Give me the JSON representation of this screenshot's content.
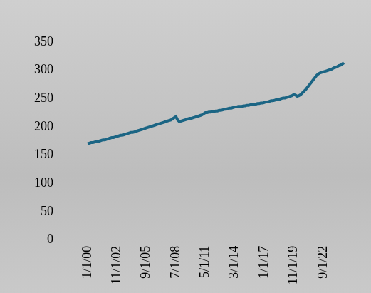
{
  "chart_data": {
    "type": "line",
    "categories": [
      "1/1/00",
      null,
      null,
      null,
      null,
      null,
      null,
      null,
      null,
      null,
      null,
      null,
      null,
      null,
      null,
      null,
      null,
      "11/1/02",
      null,
      null,
      null,
      null,
      null,
      null,
      null,
      null,
      null,
      null,
      null,
      null,
      null,
      null,
      null,
      null,
      "9/1/05",
      null,
      null,
      null,
      null,
      null,
      null,
      null,
      null,
      null,
      null,
      null,
      null,
      null,
      null,
      null,
      null,
      "7/1/08",
      null,
      null,
      null,
      null,
      null,
      null,
      null,
      null,
      null,
      null,
      null,
      null,
      null,
      null,
      null,
      null,
      "5/1/11",
      null,
      null,
      null,
      null,
      null,
      null,
      null,
      null,
      null,
      null,
      null,
      null,
      null,
      null,
      null,
      null,
      "3/1/14",
      null,
      null,
      null,
      null,
      null,
      null,
      null,
      null,
      null,
      null,
      null,
      null,
      null,
      null,
      null,
      null,
      "1/1/17",
      null,
      null,
      null,
      null,
      null,
      null,
      null,
      null,
      null,
      null,
      null,
      null,
      null,
      null,
      null,
      null,
      "11/1/19",
      null,
      null,
      null,
      null,
      null,
      null,
      null,
      null,
      null,
      null,
      null,
      null,
      null,
      null,
      null,
      null,
      "9/1/22",
      null,
      null,
      null,
      null,
      null,
      null,
      null,
      null,
      null,
      null,
      null,
      null
    ],
    "values": [
      170,
      171,
      172,
      172,
      173,
      174,
      174,
      175,
      176,
      177,
      177,
      178,
      179,
      180,
      181,
      181,
      182,
      183,
      184,
      185,
      185,
      186,
      187,
      188,
      189,
      190,
      190,
      191,
      192,
      193,
      194,
      195,
      196,
      197,
      198,
      199,
      200,
      201,
      202,
      203,
      204,
      205,
      206,
      207,
      208,
      209,
      210,
      211,
      212,
      214,
      216,
      218,
      212,
      209,
      210,
      211,
      212,
      213,
      214,
      215,
      215,
      216,
      217,
      218,
      219,
      220,
      221,
      223,
      225,
      225,
      226,
      226,
      227,
      227,
      228,
      228,
      229,
      229,
      230,
      231,
      231,
      232,
      233,
      233,
      234,
      235,
      235,
      236,
      236,
      236,
      237,
      237,
      238,
      238,
      239,
      239,
      240,
      240,
      241,
      241,
      242,
      242,
      243,
      244,
      244,
      245,
      246,
      246,
      247,
      248,
      248,
      249,
      250,
      251,
      251,
      252,
      253,
      254,
      255,
      257,
      256,
      254,
      255,
      257,
      260,
      263,
      266,
      270,
      274,
      278,
      282,
      286,
      290,
      293,
      295,
      296,
      297,
      298,
      299,
      300,
      301,
      302,
      304,
      305,
      306,
      308,
      309,
      311,
      313
    ],
    "color": "#1b6584",
    "ylim": [
      0,
      350
    ],
    "yticks": [
      0,
      50,
      100,
      150,
      200,
      250,
      300,
      350
    ],
    "grid": false
  }
}
